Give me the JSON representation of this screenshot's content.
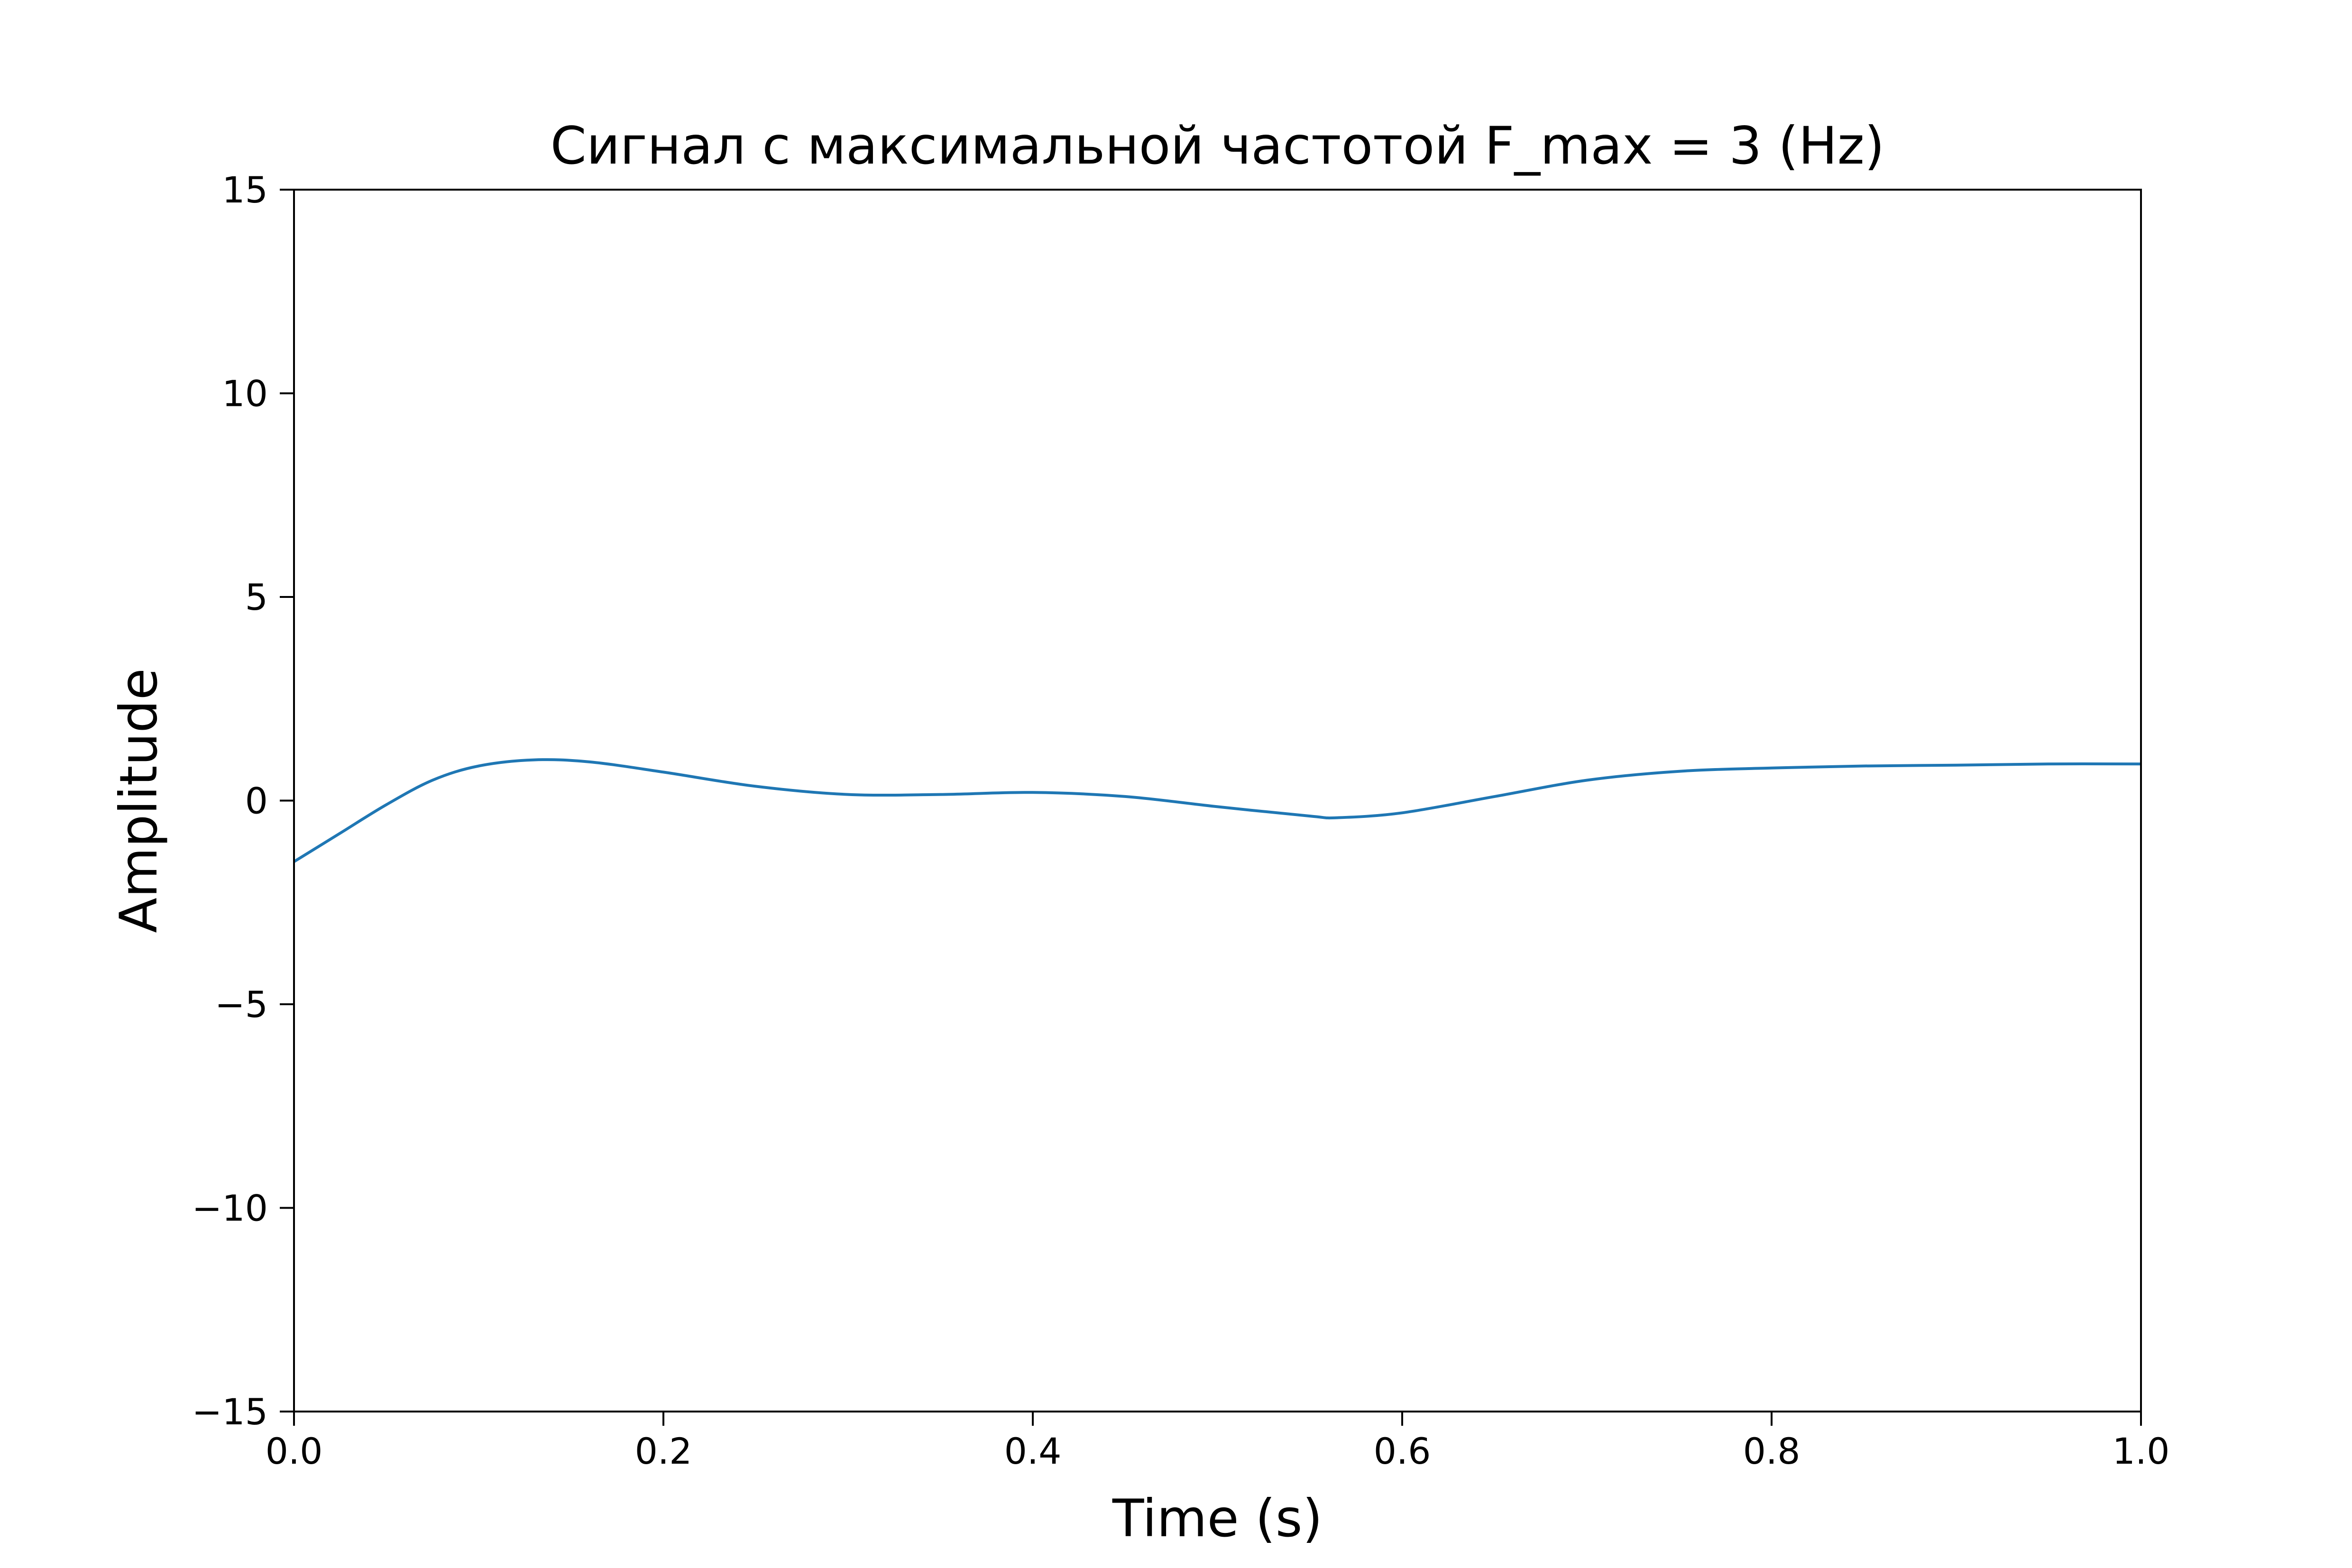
{
  "chart_data": {
    "type": "line",
    "title": "Сигнал с максимальной частотой F_max = 3 (Hz)",
    "xlabel": "Time (s)",
    "ylabel": "Amplitude",
    "xlim": [
      0.0,
      1.0
    ],
    "ylim": [
      -15,
      15
    ],
    "x_ticks": [
      "0.0",
      "0.2",
      "0.4",
      "0.6",
      "0.8",
      "1.0"
    ],
    "y_ticks": [
      "−15",
      "−10",
      "−5",
      "0",
      "5",
      "10",
      "15"
    ],
    "grid": false,
    "legend": false,
    "series": [
      {
        "color": "#1f77b4",
        "x": [
          0.0,
          0.025,
          0.05,
          0.075,
          0.1,
          0.13,
          0.16,
          0.2,
          0.25,
          0.3,
          0.35,
          0.4,
          0.45,
          0.5,
          0.55,
          0.565,
          0.6,
          0.65,
          0.7,
          0.75,
          0.8,
          0.85,
          0.9,
          0.95,
          1.0
        ],
        "y": [
          -1.5,
          -0.8,
          -0.1,
          0.5,
          0.85,
          1.0,
          0.95,
          0.7,
          0.35,
          0.15,
          0.15,
          0.2,
          0.1,
          -0.15,
          -0.38,
          -0.42,
          -0.3,
          0.1,
          0.5,
          0.72,
          0.8,
          0.85,
          0.87,
          0.9,
          0.9
        ]
      }
    ]
  }
}
